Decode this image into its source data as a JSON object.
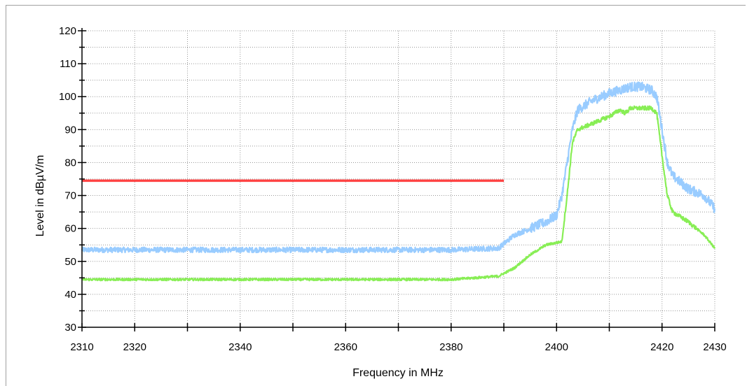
{
  "chart_data": {
    "type": "line",
    "xlabel": "Frequency in MHz",
    "ylabel": "Level in dBµV/m",
    "xlim": [
      2310,
      2430
    ],
    "ylim": [
      30,
      120
    ],
    "x_ticks": [
      2310,
      2320,
      2340,
      2360,
      2380,
      2400,
      2420,
      2430
    ],
    "x_tick_labels": [
      "2310",
      "2320",
      "2340",
      "2360",
      "2380",
      "2400",
      "2420",
      "2430"
    ],
    "x_minor_step": 10,
    "y_ticks": [
      30,
      40,
      50,
      60,
      70,
      80,
      90,
      100,
      110,
      120
    ],
    "y_tick_labels": [
      "30",
      "40",
      "50",
      "60",
      "70",
      "80",
      "90",
      "100",
      "110",
      "120"
    ],
    "y_minor_step": 5,
    "grid": true,
    "legend": "none",
    "series": [
      {
        "color": "#99ccff",
        "noise": 0.8,
        "x": [
          2310,
          2320,
          2340,
          2360,
          2380,
          2389,
          2392,
          2395,
          2398,
          2400,
          2401,
          2403,
          2404,
          2407,
          2410,
          2412,
          2414,
          2416,
          2418,
          2419,
          2420,
          2421,
          2422,
          2425,
          2428,
          2430
        ],
        "values": [
          53.5,
          53.5,
          53.5,
          53.5,
          53.5,
          54,
          58,
          60,
          62,
          64,
          70,
          90,
          96,
          99,
          101,
          102,
          103,
          103,
          102,
          100,
          90,
          80,
          76,
          72,
          70,
          66
        ]
      },
      {
        "color": "#88ee55",
        "noise": 0.35,
        "x": [
          2310,
          2320,
          2340,
          2360,
          2380,
          2389,
          2392,
          2395,
          2398,
          2401,
          2402,
          2403,
          2404,
          2407,
          2410,
          2412,
          2413,
          2414,
          2416,
          2418,
          2419,
          2420,
          2421,
          2422,
          2425,
          2428,
          2430
        ],
        "values": [
          44.5,
          44.5,
          44.5,
          44.5,
          44.5,
          45.5,
          48,
          52,
          55,
          56,
          70,
          86,
          90,
          92,
          94,
          96,
          95,
          96.5,
          96.5,
          96.5,
          95,
          82,
          70,
          65,
          62,
          58,
          54
        ]
      },
      {
        "color": "#ff4444",
        "noise": 0,
        "x": [
          2310,
          2390
        ],
        "values": [
          74.5,
          74.5
        ]
      }
    ]
  }
}
